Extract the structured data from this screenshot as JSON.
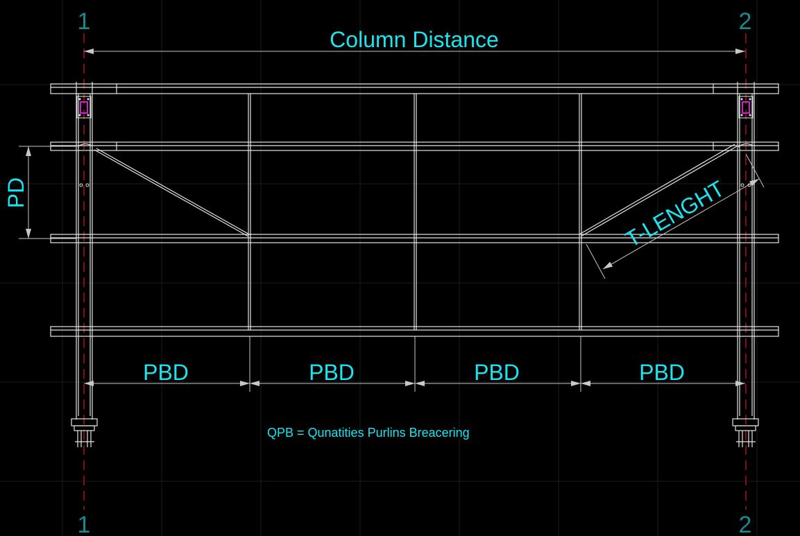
{
  "drawing": {
    "axis_labels": {
      "left_top": "1",
      "left_bottom": "1",
      "right_top": "2",
      "right_bottom": "2"
    },
    "dimension_labels": {
      "column_distance": "Column Distance",
      "purlin_distance": "PD",
      "brace_length": "T-LENGHT",
      "pbd": [
        "PBD",
        "PBD",
        "PBD",
        "PBD"
      ]
    },
    "note": "QPB = Qunatities Purlins Breacering",
    "colors": {
      "background": "#000000",
      "grid": "#1b1d20",
      "structure": "#e6e6e6",
      "dimension_text": "#19e6f0",
      "axis_line": "#d11a1a",
      "axis_text": "#1a8a8a",
      "plate": "#d21ed2"
    }
  }
}
